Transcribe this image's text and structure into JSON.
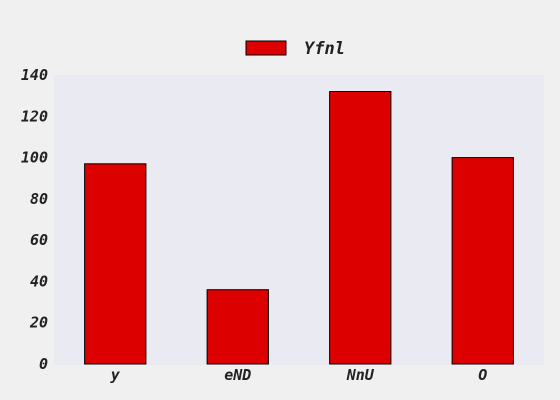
{
  "chart_data": {
    "type": "bar",
    "title": "",
    "xlabel": "",
    "ylabel": "",
    "categories": [
      "y",
      "eND",
      "NnU",
      "O"
    ],
    "series": [
      {
        "name": "Yfnl",
        "values": [
          97,
          36,
          132,
          100
        ],
        "color": "#dd0000"
      }
    ],
    "ylim": [
      0,
      140
    ],
    "yticks": [
      0,
      20,
      40,
      60,
      80,
      100,
      120,
      140
    ],
    "grid": false,
    "legend": "top-center",
    "plot_background": "#eaeaf2",
    "page_background": "#f0f0f0"
  }
}
